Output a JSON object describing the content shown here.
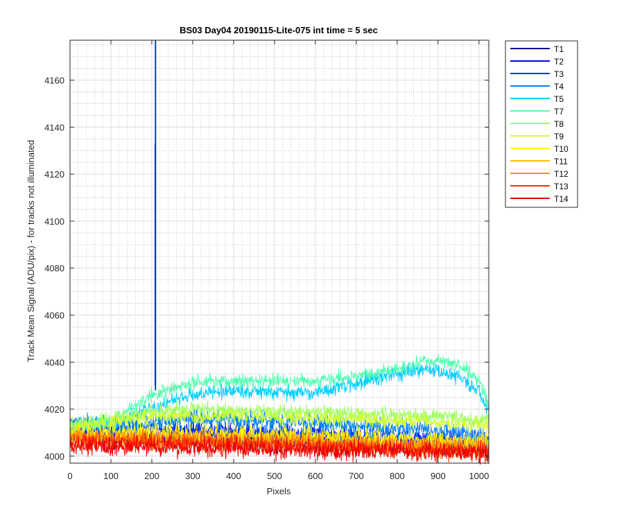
{
  "chart_data": {
    "type": "line",
    "title": "BS03 Day04 20190115-Lite-075 int time = 5 sec",
    "xlabel": "Pixels",
    "ylabel": "Track Mean Signal (ADU/pix) - for tracks not illuminated",
    "xlim": [
      0,
      1024
    ],
    "ylim": [
      3997,
      4177
    ],
    "xticks": [
      0,
      100,
      200,
      300,
      400,
      500,
      600,
      700,
      800,
      900,
      1000
    ],
    "yticks": [
      4000,
      4020,
      4040,
      4060,
      4080,
      4100,
      4120,
      4140,
      4160
    ],
    "y_minor_step": 5,
    "grid": true,
    "minor_grid": true,
    "legend_position": "outside-right",
    "series": [
      {
        "name": "T1",
        "color": "#00008f",
        "profile": [
          [
            0,
            4009
          ],
          [
            150,
            4008
          ],
          [
            400,
            4007
          ],
          [
            700,
            4005
          ],
          [
            1024,
            4004
          ]
        ],
        "noise": 2
      },
      {
        "name": "T2",
        "color": "#0000df",
        "profile": [
          [
            0,
            4010
          ],
          [
            200,
            4010
          ],
          [
            400,
            4009
          ],
          [
            700,
            4007
          ],
          [
            1024,
            4004
          ]
        ],
        "noise": 2
      },
      {
        "name": "T3",
        "color": "#0030ff",
        "profile": [
          [
            0,
            4011
          ],
          [
            150,
            4011
          ],
          [
            300,
            4011
          ],
          [
            500,
            4010
          ],
          [
            800,
            4008
          ],
          [
            1024,
            4006
          ]
        ],
        "noise": 2
      },
      {
        "name": "T4",
        "color": "#0080ff",
        "profile": [
          [
            0,
            4013
          ],
          [
            150,
            4013
          ],
          [
            300,
            4016
          ],
          [
            500,
            4015
          ],
          [
            800,
            4012
          ],
          [
            1000,
            4009
          ],
          [
            1024,
            4007
          ]
        ],
        "noise": 2
      },
      {
        "name": "T5",
        "color": "#00cfff",
        "profile": [
          [
            0,
            4013
          ],
          [
            100,
            4014
          ],
          [
            200,
            4021
          ],
          [
            300,
            4026
          ],
          [
            400,
            4028
          ],
          [
            500,
            4027
          ],
          [
            600,
            4027
          ],
          [
            700,
            4031
          ],
          [
            800,
            4035
          ],
          [
            880,
            4037
          ],
          [
            950,
            4034
          ],
          [
            1000,
            4027
          ],
          [
            1024,
            4019
          ]
        ],
        "noise": 1.5
      },
      {
        "name": "T7",
        "color": "#50ffaf",
        "profile": [
          [
            0,
            4013
          ],
          [
            100,
            4015
          ],
          [
            200,
            4026
          ],
          [
            300,
            4031
          ],
          [
            400,
            4032
          ],
          [
            500,
            4032
          ],
          [
            600,
            4032
          ],
          [
            700,
            4034
          ],
          [
            800,
            4037
          ],
          [
            880,
            4041
          ],
          [
            950,
            4039
          ],
          [
            1000,
            4032
          ],
          [
            1024,
            4022
          ]
        ],
        "noise": 1.5
      },
      {
        "name": "T8",
        "color": "#9fff60",
        "profile": [
          [
            0,
            4013
          ],
          [
            100,
            4016
          ],
          [
            200,
            4019
          ],
          [
            300,
            4020
          ],
          [
            500,
            4019
          ],
          [
            700,
            4018
          ],
          [
            900,
            4017
          ],
          [
            1024,
            4015
          ]
        ],
        "noise": 1.5
      },
      {
        "name": "T9",
        "color": "#cfff30",
        "profile": [
          [
            0,
            4012
          ],
          [
            100,
            4014
          ],
          [
            200,
            4017
          ],
          [
            400,
            4017
          ],
          [
            600,
            4016
          ],
          [
            800,
            4015
          ],
          [
            1024,
            4013
          ]
        ],
        "noise": 1.5
      },
      {
        "name": "T10",
        "color": "#ffff00",
        "profile": [
          [
            0,
            4010
          ],
          [
            200,
            4010
          ],
          [
            500,
            4009
          ],
          [
            800,
            4007
          ],
          [
            1024,
            4006
          ]
        ],
        "noise": 2
      },
      {
        "name": "T11",
        "color": "#ffbf00",
        "profile": [
          [
            0,
            4009
          ],
          [
            200,
            4008
          ],
          [
            500,
            4007
          ],
          [
            800,
            4005
          ],
          [
            1024,
            4005
          ]
        ],
        "noise": 2
      },
      {
        "name": "T12",
        "color": "#ff8f00",
        "profile": [
          [
            0,
            4008
          ],
          [
            200,
            4007
          ],
          [
            500,
            4006
          ],
          [
            800,
            4004
          ],
          [
            1024,
            4003
          ]
        ],
        "noise": 2
      },
      {
        "name": "T13",
        "color": "#ff3000",
        "profile": [
          [
            0,
            4006
          ],
          [
            200,
            4006
          ],
          [
            500,
            4005
          ],
          [
            800,
            4003
          ],
          [
            1024,
            4002
          ]
        ],
        "noise": 2
      },
      {
        "name": "T14",
        "color": "#ef0000",
        "profile": [
          [
            0,
            4004
          ],
          [
            200,
            4004
          ],
          [
            500,
            4003
          ],
          [
            800,
            4002
          ],
          [
            1024,
            4001
          ]
        ],
        "noise": 2
      }
    ],
    "spike": {
      "series": "T3",
      "x": 209,
      "y_top": 4177,
      "y_partial": 4133,
      "base": 4028
    }
  }
}
